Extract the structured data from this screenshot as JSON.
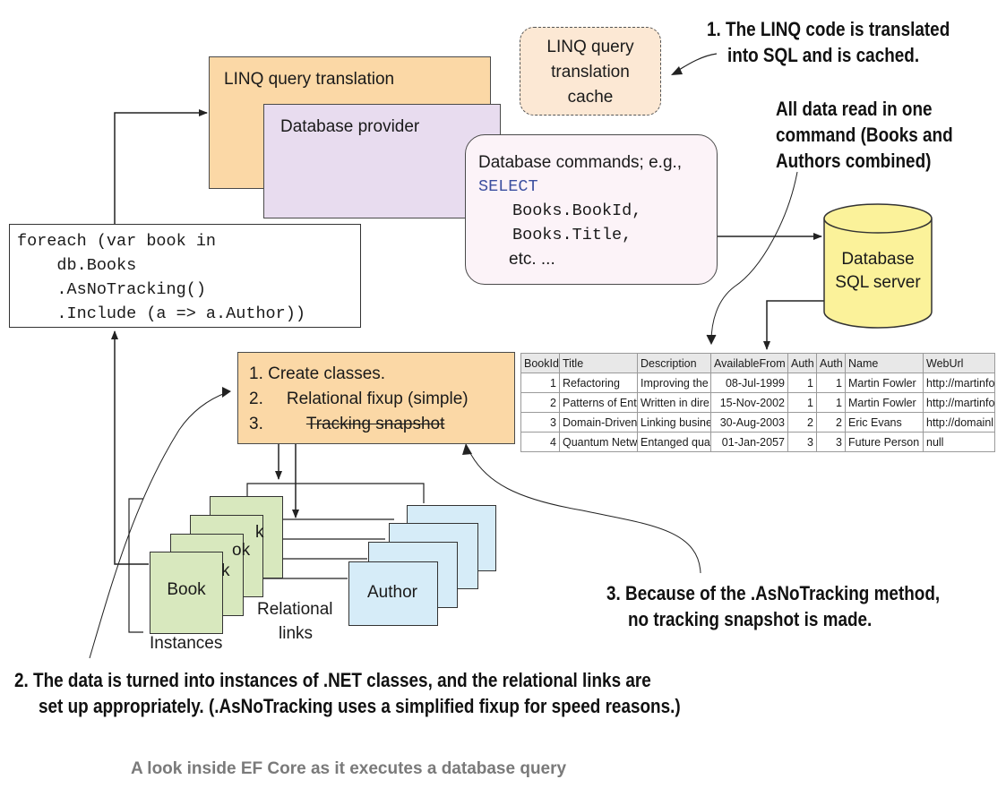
{
  "annotations": {
    "a1_line1": "1. The LINQ code is translated",
    "a1_line2": "into SQL and is cached.",
    "data_read_line1": "All data read in one",
    "data_read_line2": "command (Books and",
    "data_read_line3": "Authors combined)",
    "a2_line1": "2. The data is turned into instances of .NET classes, and the relational links are",
    "a2_line2": "set up appropriately. (.AsNoTracking uses a simplified fixup for speed reasons.)",
    "a3_line1": "3. Because of the .AsNoTracking method,",
    "a3_line2": "no tracking snapshot is made."
  },
  "boxes": {
    "linq_translation": "LINQ query translation",
    "database_provider": "Database provider",
    "cache_lines": [
      "LINQ query",
      "translation",
      "cache"
    ],
    "db_commands": {
      "line1": "Database commands; e.g.,",
      "keyword": "SELECT",
      "line3": "Books.BookId,",
      "line4": "Books.Title,",
      "line5": "etc. ..."
    },
    "database_lines": [
      "Database",
      "SQL server"
    ]
  },
  "code": {
    "line1": "foreach (var book in",
    "line2": "    db.Books",
    "line3": "    .AsNoTracking()",
    "line4": "    .Include (a => a.Author))"
  },
  "steps": {
    "step1": "1. Create classes.",
    "step2_num": "2.",
    "step2_text": "Relational fixup (simple)",
    "step3_num": "3.",
    "step3_text": "Tracking snapshot"
  },
  "instances": {
    "book_label": "Book",
    "author_label": "Author",
    "instances_label": "Instances",
    "relational_line1": "Relational",
    "relational_line2": "links",
    "partial_k": "k",
    "partial_ok": "ok"
  },
  "table": {
    "headers": [
      "BookId",
      "Title",
      "Description",
      "AvailableFrom",
      "Auth",
      "Auth",
      "Name",
      "WebUrl"
    ],
    "rows": [
      [
        "1",
        "Refactoring",
        "Improving the",
        "08-Jul-1999",
        "1",
        "1",
        "Martin Fowler",
        "http://martinfo"
      ],
      [
        "2",
        "Patterns of Ent",
        "Written in dire",
        "15-Nov-2002",
        "1",
        "1",
        "Martin Fowler",
        "http://martinfo"
      ],
      [
        "3",
        "Domain-Driven",
        "Linking busine",
        "30-Aug-2003",
        "2",
        "2",
        "Eric Evans",
        "http://domainl"
      ],
      [
        "4",
        "Quantum Netw",
        "Entanged qua",
        "01-Jan-2057",
        "3",
        "3",
        "Future Person",
        "null"
      ]
    ]
  },
  "caption": "A look inside EF Core as it executes a database query",
  "colors": {
    "linq_box": "#fbd8a6",
    "provider_box": "#e8dcef",
    "commands_box": "#fcf3f8",
    "cache_box": "#fce8d4",
    "database": "#fbf29a",
    "book": "#d8e8be",
    "author": "#d6ecf8",
    "sql_keyword": "#3c4fa0",
    "caption": "#7a7a7a"
  }
}
